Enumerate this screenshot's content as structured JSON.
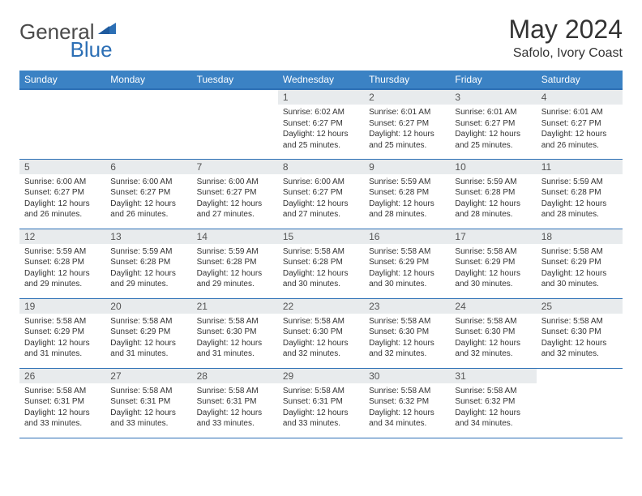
{
  "logo": {
    "text_general": "General",
    "text_blue": "Blue",
    "triangle_color": "#2c6fb5"
  },
  "header": {
    "month_title": "May 2024",
    "location": "Safolo, Ivory Coast"
  },
  "colors": {
    "header_bg": "#3b82c4",
    "header_border": "#2c6fb5",
    "day_number_bg": "#e8ebed",
    "row_border": "#2c6fb5",
    "text": "#333333"
  },
  "day_headers": [
    "Sunday",
    "Monday",
    "Tuesday",
    "Wednesday",
    "Thursday",
    "Friday",
    "Saturday"
  ],
  "weeks": [
    [
      null,
      null,
      null,
      {
        "n": "1",
        "sunrise": "6:02 AM",
        "sunset": "6:27 PM",
        "daylight": "12 hours and 25 minutes."
      },
      {
        "n": "2",
        "sunrise": "6:01 AM",
        "sunset": "6:27 PM",
        "daylight": "12 hours and 25 minutes."
      },
      {
        "n": "3",
        "sunrise": "6:01 AM",
        "sunset": "6:27 PM",
        "daylight": "12 hours and 25 minutes."
      },
      {
        "n": "4",
        "sunrise": "6:01 AM",
        "sunset": "6:27 PM",
        "daylight": "12 hours and 26 minutes."
      }
    ],
    [
      {
        "n": "5",
        "sunrise": "6:00 AM",
        "sunset": "6:27 PM",
        "daylight": "12 hours and 26 minutes."
      },
      {
        "n": "6",
        "sunrise": "6:00 AM",
        "sunset": "6:27 PM",
        "daylight": "12 hours and 26 minutes."
      },
      {
        "n": "7",
        "sunrise": "6:00 AM",
        "sunset": "6:27 PM",
        "daylight": "12 hours and 27 minutes."
      },
      {
        "n": "8",
        "sunrise": "6:00 AM",
        "sunset": "6:27 PM",
        "daylight": "12 hours and 27 minutes."
      },
      {
        "n": "9",
        "sunrise": "5:59 AM",
        "sunset": "6:28 PM",
        "daylight": "12 hours and 28 minutes."
      },
      {
        "n": "10",
        "sunrise": "5:59 AM",
        "sunset": "6:28 PM",
        "daylight": "12 hours and 28 minutes."
      },
      {
        "n": "11",
        "sunrise": "5:59 AM",
        "sunset": "6:28 PM",
        "daylight": "12 hours and 28 minutes."
      }
    ],
    [
      {
        "n": "12",
        "sunrise": "5:59 AM",
        "sunset": "6:28 PM",
        "daylight": "12 hours and 29 minutes."
      },
      {
        "n": "13",
        "sunrise": "5:59 AM",
        "sunset": "6:28 PM",
        "daylight": "12 hours and 29 minutes."
      },
      {
        "n": "14",
        "sunrise": "5:59 AM",
        "sunset": "6:28 PM",
        "daylight": "12 hours and 29 minutes."
      },
      {
        "n": "15",
        "sunrise": "5:58 AM",
        "sunset": "6:28 PM",
        "daylight": "12 hours and 30 minutes."
      },
      {
        "n": "16",
        "sunrise": "5:58 AM",
        "sunset": "6:29 PM",
        "daylight": "12 hours and 30 minutes."
      },
      {
        "n": "17",
        "sunrise": "5:58 AM",
        "sunset": "6:29 PM",
        "daylight": "12 hours and 30 minutes."
      },
      {
        "n": "18",
        "sunrise": "5:58 AM",
        "sunset": "6:29 PM",
        "daylight": "12 hours and 30 minutes."
      }
    ],
    [
      {
        "n": "19",
        "sunrise": "5:58 AM",
        "sunset": "6:29 PM",
        "daylight": "12 hours and 31 minutes."
      },
      {
        "n": "20",
        "sunrise": "5:58 AM",
        "sunset": "6:29 PM",
        "daylight": "12 hours and 31 minutes."
      },
      {
        "n": "21",
        "sunrise": "5:58 AM",
        "sunset": "6:30 PM",
        "daylight": "12 hours and 31 minutes."
      },
      {
        "n": "22",
        "sunrise": "5:58 AM",
        "sunset": "6:30 PM",
        "daylight": "12 hours and 32 minutes."
      },
      {
        "n": "23",
        "sunrise": "5:58 AM",
        "sunset": "6:30 PM",
        "daylight": "12 hours and 32 minutes."
      },
      {
        "n": "24",
        "sunrise": "5:58 AM",
        "sunset": "6:30 PM",
        "daylight": "12 hours and 32 minutes."
      },
      {
        "n": "25",
        "sunrise": "5:58 AM",
        "sunset": "6:30 PM",
        "daylight": "12 hours and 32 minutes."
      }
    ],
    [
      {
        "n": "26",
        "sunrise": "5:58 AM",
        "sunset": "6:31 PM",
        "daylight": "12 hours and 33 minutes."
      },
      {
        "n": "27",
        "sunrise": "5:58 AM",
        "sunset": "6:31 PM",
        "daylight": "12 hours and 33 minutes."
      },
      {
        "n": "28",
        "sunrise": "5:58 AM",
        "sunset": "6:31 PM",
        "daylight": "12 hours and 33 minutes."
      },
      {
        "n": "29",
        "sunrise": "5:58 AM",
        "sunset": "6:31 PM",
        "daylight": "12 hours and 33 minutes."
      },
      {
        "n": "30",
        "sunrise": "5:58 AM",
        "sunset": "6:32 PM",
        "daylight": "12 hours and 34 minutes."
      },
      {
        "n": "31",
        "sunrise": "5:58 AM",
        "sunset": "6:32 PM",
        "daylight": "12 hours and 34 minutes."
      },
      null
    ]
  ],
  "labels": {
    "sunrise": "Sunrise:",
    "sunset": "Sunset:",
    "daylight": "Daylight:"
  }
}
